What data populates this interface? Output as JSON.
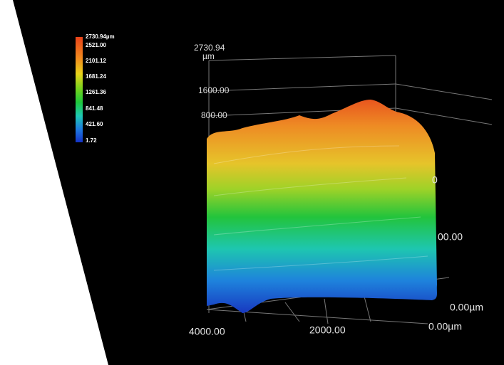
{
  "color_scale": {
    "labels": [
      "2730.94µm",
      "2521.00",
      "2101.12",
      "1681.24",
      "1261.36",
      "841.48",
      "421.60",
      "1.72"
    ]
  },
  "z_axis": {
    "max": "2730.94",
    "unit": "µm",
    "ticks": [
      "1600.00",
      "800.00"
    ]
  },
  "y_axis": {
    "ticks": [
      "0",
      "00.00",
      "0.00µm"
    ]
  },
  "x_axis": {
    "ticks": [
      "4000.00",
      "2000.00",
      "0.00µm"
    ]
  }
}
